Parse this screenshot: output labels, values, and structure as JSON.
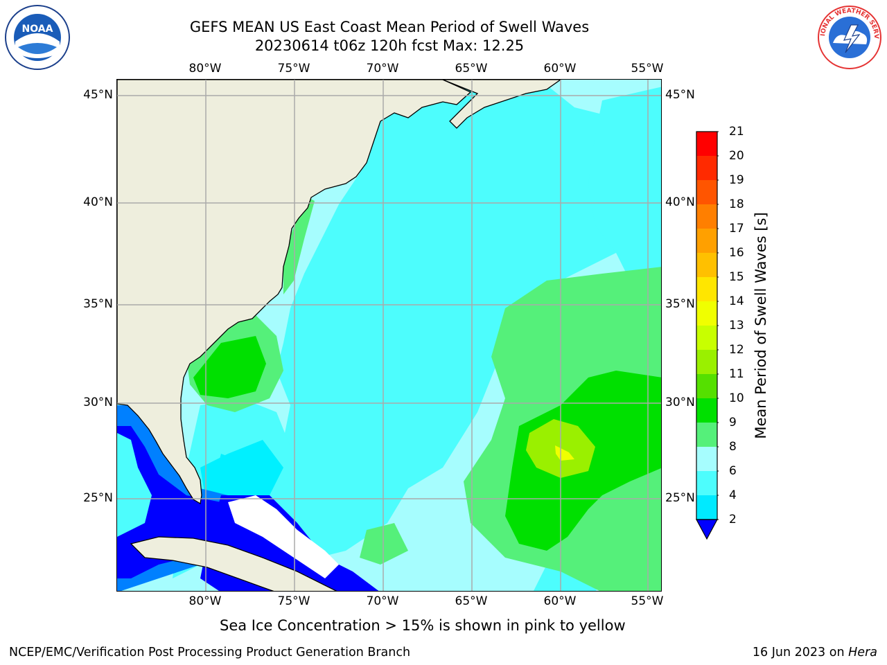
{
  "header": {
    "title_line1": "GEFS MEAN US East Coast Mean Period of Swell Waves",
    "title_line2": "20230614 t06z 120h fcst   Max: 12.25"
  },
  "logos": {
    "left": "noaa-logo",
    "left_text": "NOAA",
    "right": "nws-logo",
    "right_text": "NATIONAL WEATHER SERVICE"
  },
  "map": {
    "lon_labels": [
      "80°W",
      "75°W",
      "70°W",
      "65°W",
      "60°W",
      "55°W"
    ],
    "lat_labels": [
      "45°N",
      "40°N",
      "35°N",
      "30°N",
      "25°N"
    ],
    "lon_range": [
      -85,
      -54.2
    ],
    "lat_range": [
      20.5,
      45.9
    ],
    "gridlines": true,
    "field_max": 12.25
  },
  "colorbar": {
    "label": "Mean Period of Swell Waves [s]",
    "ticks": [
      "21",
      "20",
      "19",
      "18",
      "17",
      "16",
      "15",
      "14",
      "13",
      "12",
      "11",
      "10",
      "9",
      "8",
      "6",
      "4",
      "2"
    ],
    "colors_top_to_bottom": [
      "#ff0000",
      "#ff2a00",
      "#ff5500",
      "#ff7f00",
      "#ffa000",
      "#ffc000",
      "#ffe600",
      "#f0ff00",
      "#c8ff00",
      "#9af000",
      "#55e000",
      "#00e000",
      "#55f07a",
      "#a6fdfe",
      "#4dfdfd",
      "#00eaff",
      "#0080ff"
    ],
    "under_color": "#0000ff"
  },
  "colors": {
    "land": "#eeeedd",
    "ocean_base": "#a6fdfe",
    "cyan_band": "#4dfdfd",
    "deep_cyan": "#00f0ff",
    "blue_band": "#0080ff",
    "dark_blue": "#0000ff",
    "green_light": "#55f07a",
    "green": "#00e000",
    "green_yellow": "#9af000",
    "yellow": "#f0ff00"
  },
  "notes": {
    "sea_ice": "Sea Ice Concentration > 15% is shown in pink to yellow"
  },
  "footer": {
    "left": "NCEP/EMC/Verification Post Processing Product Generation Branch",
    "date": "16 Jun 2023 on",
    "host": "Hera"
  }
}
